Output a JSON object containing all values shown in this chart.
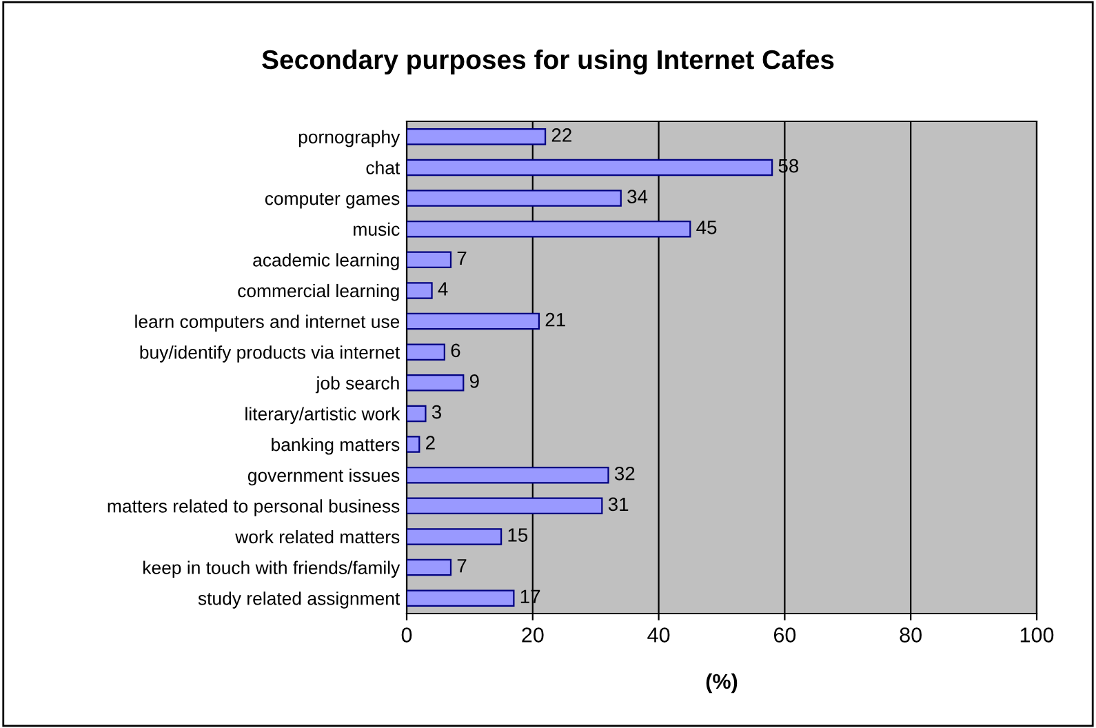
{
  "chart_data": {
    "type": "bar",
    "orientation": "horizontal",
    "title": "Secondary purposes for using Internet Cafes",
    "xlabel": "(%)",
    "categories": [
      "pornography",
      "chat",
      "computer games",
      "music",
      "academic learning",
      "commercial learning",
      "learn computers and internet use",
      "buy/identify products via internet",
      "job search",
      "literary/artistic work",
      "banking matters",
      "government issues",
      "matters related to personal business",
      "work related matters",
      "keep in touch with friends/family",
      "study related assignment"
    ],
    "values": [
      22,
      58,
      34,
      45,
      7,
      4,
      21,
      6,
      9,
      3,
      2,
      32,
      31,
      15,
      7,
      17
    ],
    "color": "#9999ff",
    "data_labels": true,
    "xlim": [
      0,
      100
    ],
    "xticks": [
      0,
      20,
      40,
      60,
      80,
      100
    ],
    "grid": "x",
    "legend": false
  }
}
